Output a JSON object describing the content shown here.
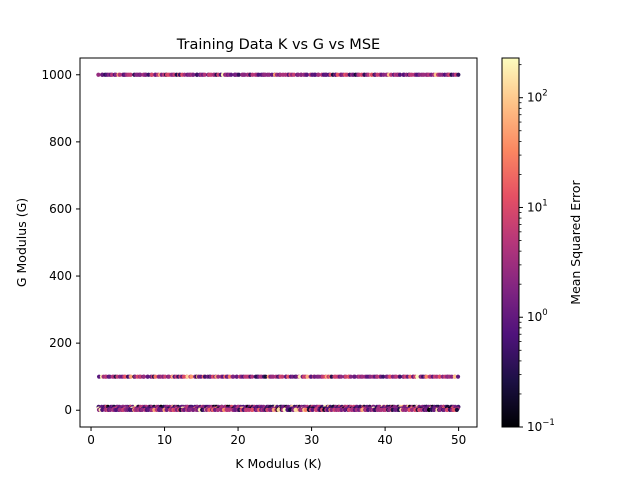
{
  "chart_data": {
    "type": "scatter",
    "title": "Training Data K vs G vs MSE",
    "xlabel": "K Modulus (K)",
    "ylabel": "G Modulus (G)",
    "xlim": [
      -1.5,
      52.5
    ],
    "ylim": [
      -50,
      1050
    ],
    "xticks": [
      0,
      10,
      20,
      30,
      40,
      50
    ],
    "yticks": [
      0,
      200,
      400,
      600,
      800,
      1000
    ],
    "xtick_labels": [
      "0",
      "10",
      "20",
      "30",
      "40",
      "50"
    ],
    "ytick_labels": [
      "0",
      "200",
      "400",
      "600",
      "800",
      "1000"
    ],
    "grid": false,
    "marker_size": 4,
    "colormap": "magma",
    "colorbar": {
      "label": "Mean Squared Error",
      "scale": "log",
      "range": [
        0.1,
        230
      ],
      "ticks": [
        0.1,
        1,
        10,
        100
      ],
      "tick_labels": [
        "10",
        "10",
        "10",
        "10"
      ],
      "tick_exponents": [
        "−1",
        "0",
        "1",
        "2"
      ]
    },
    "bands": [
      {
        "g": 1000,
        "k_range": [
          1,
          50
        ],
        "mse_log10_mean": 0.3,
        "mse_log10_spread": 0.6
      },
      {
        "g": 100,
        "k_range": [
          1,
          50
        ],
        "mse_log10_mean": 0.4,
        "mse_log10_spread": 0.65
      },
      {
        "g": 10,
        "k_range": [
          1,
          50
        ],
        "mse_log10_mean": 0.1,
        "mse_log10_spread": 0.8
      },
      {
        "g": 5,
        "k_range": [
          1,
          50
        ],
        "mse_log10_mean": 0.2,
        "mse_log10_spread": 0.8
      },
      {
        "g": 1,
        "k_range": [
          1,
          50
        ],
        "mse_log10_mean": 0.3,
        "mse_log10_spread": 0.8
      }
    ],
    "points_per_band": 190
  }
}
